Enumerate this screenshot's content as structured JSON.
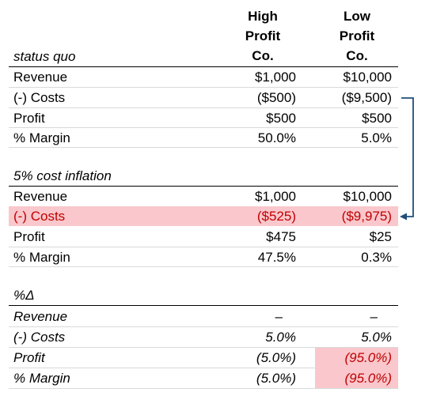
{
  "headers": {
    "col1": [
      "High",
      "Profit",
      "Co."
    ],
    "col2": [
      "Low",
      "Profit",
      "Co."
    ]
  },
  "status_quo": {
    "title": "status quo",
    "rows": [
      {
        "label": "Revenue",
        "high": "$1,000",
        "low": "$10,000"
      },
      {
        "label": "(-) Costs",
        "high": "($500)",
        "low": "($9,500)"
      },
      {
        "label": "Profit",
        "high": "$500",
        "low": "$500"
      },
      {
        "label": "% Margin",
        "high": "50.0%",
        "low": "5.0%"
      }
    ]
  },
  "inflation": {
    "title": "5% cost inflation",
    "rows": [
      {
        "label": "Revenue",
        "high": "$1,000",
        "low": "$10,000"
      },
      {
        "label": "(-) Costs",
        "high": "($525)",
        "low": "($9,975)"
      },
      {
        "label": "Profit",
        "high": "$475",
        "low": "$25"
      },
      {
        "label": "% Margin",
        "high": "47.5%",
        "low": "0.3%"
      }
    ]
  },
  "delta": {
    "title": "%Δ",
    "rows": [
      {
        "label": "Revenue",
        "high": "–",
        "low": "–"
      },
      {
        "label": "(-) Costs",
        "high": "5.0%",
        "low": "5.0%"
      },
      {
        "label": "Profit",
        "high": "(5.0%)",
        "low": "(95.0%)"
      },
      {
        "label": "% Margin",
        "high": "(5.0%)",
        "low": "(95.0%)"
      }
    ]
  },
  "colors": {
    "highlight": "#f9c7cc",
    "negative_text": "#c00000",
    "arrow": "#1f4e79"
  }
}
